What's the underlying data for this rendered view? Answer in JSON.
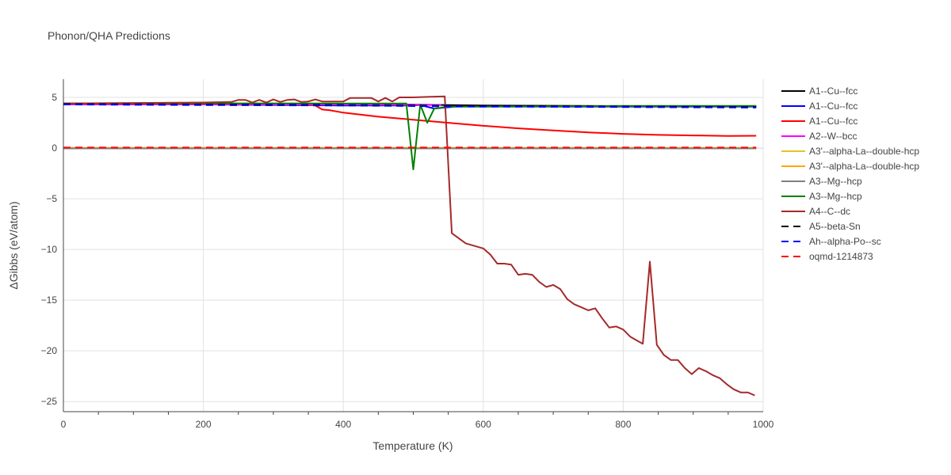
{
  "chart_data": {
    "type": "line",
    "title": "Phonon/QHA Predictions",
    "xlabel": "Temperature (K)",
    "ylabel": "ΔGibbs (eV/atom)",
    "xlim": [
      0,
      1000
    ],
    "ylim": [
      -26,
      6.8
    ],
    "xticks": [
      0,
      200,
      400,
      600,
      800,
      1000
    ],
    "yticks": [
      -25,
      -20,
      -15,
      -10,
      -5,
      0,
      5
    ],
    "grid": true,
    "legend_position": "right",
    "series": [
      {
        "name": "A1--Cu--fcc",
        "color": "#000000",
        "dash": "solid",
        "x": [
          0,
          200,
          400,
          600,
          800,
          990
        ],
        "y": [
          4.4,
          4.4,
          4.38,
          4.2,
          4.15,
          4.15
        ]
      },
      {
        "name": "A1--Cu--fcc",
        "color": "#0000ff",
        "dash": "solid",
        "x": [
          0,
          200,
          400,
          490,
          510,
          530,
          560,
          600,
          800,
          990
        ],
        "y": [
          4.35,
          4.3,
          4.2,
          4.2,
          4.25,
          3.9,
          4.1,
          4.1,
          4.1,
          4.1
        ]
      },
      {
        "name": "A1--Cu--fcc",
        "color": "#ff0000",
        "dash": "solid",
        "x": [
          0,
          200,
          340,
          360,
          370,
          380,
          400,
          450,
          500,
          550,
          600,
          650,
          700,
          750,
          800,
          850,
          900,
          950,
          990
        ],
        "y": [
          4.35,
          4.35,
          4.3,
          4.2,
          3.8,
          3.75,
          3.5,
          3.1,
          2.8,
          2.5,
          2.2,
          1.95,
          1.75,
          1.55,
          1.4,
          1.3,
          1.25,
          1.2,
          1.22
        ]
      },
      {
        "name": "A2--W--bcc",
        "color": "#ff00ff",
        "dash": "solid",
        "x": [
          0,
          200,
          400,
          540
        ],
        "y": [
          4.3,
          4.3,
          4.3,
          4.25
        ]
      },
      {
        "name": "A3'--alpha-La--double-hcp",
        "color": "#e6c229",
        "dash": "solid",
        "x": [
          0,
          200,
          400,
          600,
          800,
          990
        ],
        "y": [
          0.0,
          0.0,
          0.0,
          0.0,
          0.0,
          0.0
        ]
      },
      {
        "name": "A3'--alpha-La--double-hcp",
        "color": "#ffa500",
        "dash": "solid",
        "x": [
          0,
          200,
          400,
          600,
          800,
          990
        ],
        "y": [
          0.02,
          0.02,
          0.02,
          0.02,
          0.02,
          0.02
        ]
      },
      {
        "name": "A3--Mg--hcp",
        "color": "#808080",
        "dash": "solid",
        "x": [
          0,
          200,
          400,
          600,
          800,
          990
        ],
        "y": [
          -0.03,
          -0.03,
          -0.03,
          -0.03,
          -0.03,
          -0.03
        ]
      },
      {
        "name": "A3--Mg--hcp",
        "color": "#008000",
        "dash": "solid",
        "x": [
          0,
          200,
          400,
          490,
          500,
          510,
          520,
          530,
          550,
          600,
          800,
          990
        ],
        "y": [
          4.4,
          4.4,
          4.4,
          4.4,
          -2.1,
          4.3,
          2.5,
          3.9,
          4.1,
          4.1,
          4.15,
          4.15
        ]
      },
      {
        "name": "A4--C--dc",
        "color": "#a52a2a",
        "dash": "solid",
        "x": [
          0,
          200,
          240,
          250,
          260,
          270,
          280,
          290,
          300,
          310,
          320,
          330,
          340,
          350,
          360,
          370,
          380,
          400,
          410,
          420,
          440,
          450,
          460,
          470,
          480,
          490,
          500,
          520,
          545,
          555,
          575,
          600,
          610,
          620,
          630,
          640,
          650,
          660,
          670,
          680,
          690,
          700,
          710,
          720,
          730,
          740,
          750,
          760,
          770,
          780,
          790,
          800,
          810,
          820,
          828,
          838,
          848,
          858,
          868,
          878,
          888,
          898,
          908,
          918,
          928,
          938,
          948,
          958,
          968,
          978,
          988
        ],
        "y": [
          4.4,
          4.5,
          4.55,
          4.75,
          4.75,
          4.5,
          4.75,
          4.5,
          4.8,
          4.55,
          4.75,
          4.8,
          4.55,
          4.6,
          4.8,
          4.6,
          4.6,
          4.6,
          4.95,
          4.95,
          4.95,
          4.6,
          4.95,
          4.6,
          5.0,
          5.0,
          5.0,
          5.05,
          5.1,
          -8.4,
          -9.4,
          -9.9,
          -10.5,
          -11.4,
          -11.4,
          -11.5,
          -12.5,
          -12.4,
          -12.5,
          -13.2,
          -13.7,
          -13.5,
          -13.9,
          -14.9,
          -15.4,
          -15.7,
          -16.0,
          -15.8,
          -16.8,
          -17.7,
          -17.6,
          -17.9,
          -18.6,
          -19.0,
          -19.3,
          -11.2,
          -19.4,
          -20.4,
          -20.9,
          -20.9,
          -21.7,
          -22.3,
          -21.7,
          -22.0,
          -22.4,
          -22.7,
          -23.3,
          -23.8,
          -24.1,
          -24.1,
          -24.4
        ]
      },
      {
        "name": "A5--beta-Sn",
        "color": "#000000",
        "dash": "dash",
        "x": [
          0,
          200,
          400,
          600,
          800,
          990
        ],
        "y": [
          4.35,
          4.3,
          4.25,
          4.15,
          4.1,
          4.05
        ]
      },
      {
        "name": "Ah--alpha-Po--sc",
        "color": "#0000ff",
        "dash": "dash",
        "x": [
          0,
          200,
          400,
          600,
          800,
          990
        ],
        "y": [
          4.3,
          4.25,
          4.2,
          4.1,
          4.05,
          4.0
        ]
      },
      {
        "name": "oqmd-1214873",
        "color": "#ff0000",
        "dash": "dash",
        "x": [
          0,
          200,
          400,
          600,
          800,
          990
        ],
        "y": [
          0.05,
          0.05,
          0.05,
          0.05,
          0.05,
          0.05
        ]
      }
    ]
  }
}
